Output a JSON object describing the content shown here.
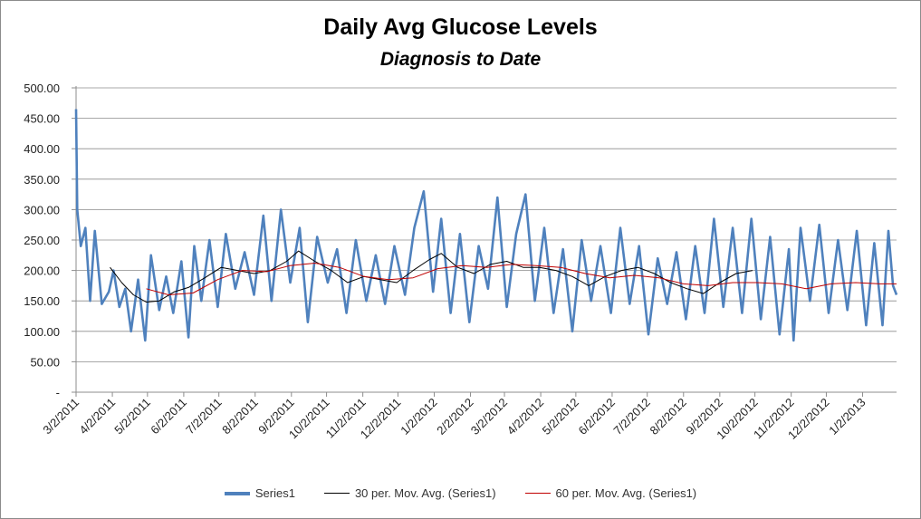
{
  "chart_data": {
    "type": "line",
    "title": "Daily Avg Glucose Levels",
    "subtitle": "Diagnosis to Date",
    "xlabel": "",
    "ylabel": "",
    "x_start": "3/2/2011",
    "x_end": "1/31/2013",
    "ylim": [
      0,
      500
    ],
    "y_ticks": [
      0,
      50,
      100,
      150,
      200,
      250,
      300,
      350,
      400,
      450,
      500
    ],
    "y_tick_labels": [
      "-",
      "50.00",
      "100.00",
      "150.00",
      "200.00",
      "250.00",
      "300.00",
      "350.00",
      "400.00",
      "450.00",
      "500.00"
    ],
    "x_tick_labels": [
      "3/2/2011",
      "4/2/2011",
      "5/2/2011",
      "6/2/2011",
      "7/2/2011",
      "8/2/2011",
      "9/2/2011",
      "10/2/2011",
      "11/2/2011",
      "12/2/2011",
      "1/2/2012",
      "2/2/2012",
      "3/2/2012",
      "4/2/2012",
      "5/2/2012",
      "6/2/2012",
      "7/2/2012",
      "8/2/2012",
      "9/2/2012",
      "10/2/2012",
      "11/2/2012",
      "12/2/2012",
      "1/2/2013"
    ],
    "grid": true,
    "legend_position": "bottom",
    "series": [
      {
        "name": "Series1",
        "color": "#4f81bd",
        "note_values_per_day": "weekly samples (date, avg glucose)",
        "points": [
          [
            "3/2/2011",
            465
          ],
          [
            "3/3/2011",
            300
          ],
          [
            "3/6/2011",
            240
          ],
          [
            "3/10/2011",
            270
          ],
          [
            "3/14/2011",
            150
          ],
          [
            "3/18/2011",
            265
          ],
          [
            "3/24/2011",
            145
          ],
          [
            "3/30/2011",
            165
          ],
          [
            "4/3/2011",
            200
          ],
          [
            "4/8/2011",
            140
          ],
          [
            "4/13/2011",
            170
          ],
          [
            "4/18/2011",
            100
          ],
          [
            "4/24/2011",
            185
          ],
          [
            "4/30/2011",
            85
          ],
          [
            "5/5/2011",
            225
          ],
          [
            "5/12/2011",
            135
          ],
          [
            "5/18/2011",
            190
          ],
          [
            "5/24/2011",
            130
          ],
          [
            "5/31/2011",
            215
          ],
          [
            "6/6/2011",
            90
          ],
          [
            "6/11/2011",
            240
          ],
          [
            "6/17/2011",
            150
          ],
          [
            "6/24/2011",
            250
          ],
          [
            "7/1/2011",
            140
          ],
          [
            "7/8/2011",
            260
          ],
          [
            "7/16/2011",
            170
          ],
          [
            "7/24/2011",
            230
          ],
          [
            "8/1/2011",
            160
          ],
          [
            "8/9/2011",
            290
          ],
          [
            "8/16/2011",
            150
          ],
          [
            "8/24/2011",
            300
          ],
          [
            "9/1/2011",
            180
          ],
          [
            "9/9/2011",
            270
          ],
          [
            "9/16/2011",
            115
          ],
          [
            "9/24/2011",
            255
          ],
          [
            "10/3/2011",
            180
          ],
          [
            "10/11/2011",
            235
          ],
          [
            "10/19/2011",
            130
          ],
          [
            "10/27/2011",
            250
          ],
          [
            "11/5/2011",
            150
          ],
          [
            "11/13/2011",
            225
          ],
          [
            "11/21/2011",
            145
          ],
          [
            "11/29/2011",
            240
          ],
          [
            "12/8/2011",
            160
          ],
          [
            "12/16/2011",
            270
          ],
          [
            "12/24/2011",
            330
          ],
          [
            "1/1/2012",
            165
          ],
          [
            "1/8/2012",
            285
          ],
          [
            "1/16/2012",
            130
          ],
          [
            "1/24/2012",
            260
          ],
          [
            "2/1/2012",
            115
          ],
          [
            "2/9/2012",
            240
          ],
          [
            "2/17/2012",
            170
          ],
          [
            "2/25/2012",
            320
          ],
          [
            "3/4/2012",
            140
          ],
          [
            "3/12/2012",
            260
          ],
          [
            "3/20/2012",
            325
          ],
          [
            "3/28/2012",
            150
          ],
          [
            "4/5/2012",
            270
          ],
          [
            "4/13/2012",
            130
          ],
          [
            "4/21/2012",
            235
          ],
          [
            "4/29/2012",
            100
          ],
          [
            "5/7/2012",
            250
          ],
          [
            "5/15/2012",
            150
          ],
          [
            "5/23/2012",
            240
          ],
          [
            "6/1/2012",
            130
          ],
          [
            "6/9/2012",
            270
          ],
          [
            "6/17/2012",
            145
          ],
          [
            "6/25/2012",
            240
          ],
          [
            "7/3/2012",
            95
          ],
          [
            "7/11/2012",
            220
          ],
          [
            "7/19/2012",
            145
          ],
          [
            "7/27/2012",
            230
          ],
          [
            "8/4/2012",
            120
          ],
          [
            "8/12/2012",
            240
          ],
          [
            "8/20/2012",
            130
          ],
          [
            "8/28/2012",
            285
          ],
          [
            "9/5/2012",
            140
          ],
          [
            "9/13/2012",
            270
          ],
          [
            "9/21/2012",
            130
          ],
          [
            "9/29/2012",
            285
          ],
          [
            "10/7/2012",
            120
          ],
          [
            "10/15/2012",
            255
          ],
          [
            "10/23/2012",
            95
          ],
          [
            "10/31/2012",
            235
          ],
          [
            "11/4/2012",
            85
          ],
          [
            "11/10/2012",
            270
          ],
          [
            "11/18/2012",
            150
          ],
          [
            "11/26/2012",
            275
          ],
          [
            "12/4/2012",
            130
          ],
          [
            "12/12/2012",
            250
          ],
          [
            "12/20/2012",
            135
          ],
          [
            "12/28/2012",
            265
          ],
          [
            "1/5/2013",
            110
          ],
          [
            "1/12/2013",
            245
          ],
          [
            "1/19/2013",
            110
          ],
          [
            "1/24/2013",
            265
          ],
          [
            "1/28/2013",
            175
          ],
          [
            "1/31/2013",
            160
          ]
        ]
      },
      {
        "name": "30 per. Mov. Avg. (Series1)",
        "color": "#000000",
        "points": [
          [
            "3/31/2011",
            205
          ],
          [
            "4/10/2011",
            180
          ],
          [
            "4/20/2011",
            160
          ],
          [
            "5/1/2011",
            148
          ],
          [
            "5/12/2011",
            150
          ],
          [
            "5/25/2011",
            165
          ],
          [
            "6/6/2011",
            172
          ],
          [
            "6/20/2011",
            188
          ],
          [
            "7/4/2011",
            205
          ],
          [
            "7/18/2011",
            200
          ],
          [
            "8/1/2011",
            195
          ],
          [
            "8/15/2011",
            200
          ],
          [
            "8/29/2011",
            215
          ],
          [
            "9/8/2011",
            232
          ],
          [
            "9/22/2011",
            215
          ],
          [
            "10/6/2011",
            200
          ],
          [
            "10/20/2011",
            180
          ],
          [
            "11/3/2011",
            190
          ],
          [
            "11/17/2011",
            185
          ],
          [
            "12/1/2011",
            180
          ],
          [
            "12/15/2011",
            200
          ],
          [
            "12/29/2011",
            218
          ],
          [
            "1/8/2012",
            228
          ],
          [
            "1/22/2012",
            205
          ],
          [
            "2/5/2012",
            195
          ],
          [
            "2/19/2012",
            210
          ],
          [
            "3/4/2012",
            215
          ],
          [
            "3/18/2012",
            205
          ],
          [
            "4/1/2012",
            205
          ],
          [
            "4/15/2012",
            200
          ],
          [
            "4/29/2012",
            190
          ],
          [
            "5/13/2012",
            175
          ],
          [
            "5/27/2012",
            190
          ],
          [
            "6/10/2012",
            200
          ],
          [
            "6/24/2012",
            205
          ],
          [
            "7/8/2012",
            195
          ],
          [
            "7/22/2012",
            180
          ],
          [
            "8/5/2012",
            170
          ],
          [
            "8/19/2012",
            162
          ],
          [
            "9/2/2012",
            180
          ],
          [
            "9/16/2012",
            195
          ],
          [
            "9/30/2012",
            200
          ]
        ]
      },
      {
        "name": "60 per. Mov. Avg. (Series1)",
        "color": "#c00000",
        "points": [
          [
            "5/1/2011",
            170
          ],
          [
            "5/20/2011",
            160
          ],
          [
            "6/10/2011",
            163
          ],
          [
            "7/1/2011",
            185
          ],
          [
            "7/22/2011",
            200
          ],
          [
            "8/12/2011",
            198
          ],
          [
            "9/1/2011",
            208
          ],
          [
            "9/22/2011",
            212
          ],
          [
            "10/13/2011",
            205
          ],
          [
            "11/3/2011",
            190
          ],
          [
            "11/24/2011",
            185
          ],
          [
            "12/15/2011",
            188
          ],
          [
            "1/5/2012",
            203
          ],
          [
            "1/26/2012",
            208
          ],
          [
            "2/16/2012",
            205
          ],
          [
            "3/8/2012",
            210
          ],
          [
            "3/29/2012",
            208
          ],
          [
            "4/19/2012",
            205
          ],
          [
            "5/10/2012",
            195
          ],
          [
            "5/31/2012",
            188
          ],
          [
            "6/21/2012",
            192
          ],
          [
            "7/12/2012",
            188
          ],
          [
            "8/2/2012",
            178
          ],
          [
            "8/23/2012",
            175
          ],
          [
            "9/13/2012",
            180
          ],
          [
            "10/4/2012",
            180
          ],
          [
            "10/25/2012",
            178
          ],
          [
            "11/15/2012",
            170
          ],
          [
            "12/6/2012",
            178
          ],
          [
            "12/27/2012",
            180
          ],
          [
            "1/17/2013",
            178
          ],
          [
            "1/31/2013",
            178
          ]
        ]
      }
    ]
  }
}
